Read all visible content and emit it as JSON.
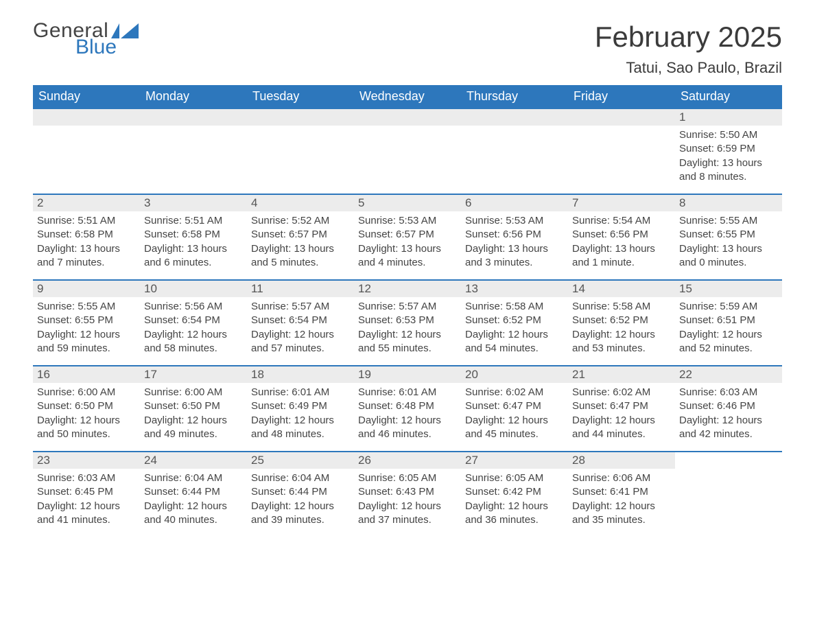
{
  "logo": {
    "text1": "General",
    "text2": "Blue",
    "flag_color": "#2d77bc"
  },
  "title": "February 2025",
  "location": "Tatui, Sao Paulo, Brazil",
  "colors": {
    "header_bg": "#2d77bc",
    "header_text": "#ffffff",
    "daynum_bg": "#ececec",
    "week_divider": "#2d77bc",
    "body_text": "#444444",
    "page_bg": "#ffffff"
  },
  "weekdays": [
    "Sunday",
    "Monday",
    "Tuesday",
    "Wednesday",
    "Thursday",
    "Friday",
    "Saturday"
  ],
  "weeks": [
    [
      {
        "blank": true
      },
      {
        "blank": true
      },
      {
        "blank": true
      },
      {
        "blank": true
      },
      {
        "blank": true
      },
      {
        "blank": true
      },
      {
        "day": "1",
        "sunrise": "Sunrise: 5:50 AM",
        "sunset": "Sunset: 6:59 PM",
        "daylight1": "Daylight: 13 hours",
        "daylight2": "and 8 minutes."
      }
    ],
    [
      {
        "day": "2",
        "sunrise": "Sunrise: 5:51 AM",
        "sunset": "Sunset: 6:58 PM",
        "daylight1": "Daylight: 13 hours",
        "daylight2": "and 7 minutes."
      },
      {
        "day": "3",
        "sunrise": "Sunrise: 5:51 AM",
        "sunset": "Sunset: 6:58 PM",
        "daylight1": "Daylight: 13 hours",
        "daylight2": "and 6 minutes."
      },
      {
        "day": "4",
        "sunrise": "Sunrise: 5:52 AM",
        "sunset": "Sunset: 6:57 PM",
        "daylight1": "Daylight: 13 hours",
        "daylight2": "and 5 minutes."
      },
      {
        "day": "5",
        "sunrise": "Sunrise: 5:53 AM",
        "sunset": "Sunset: 6:57 PM",
        "daylight1": "Daylight: 13 hours",
        "daylight2": "and 4 minutes."
      },
      {
        "day": "6",
        "sunrise": "Sunrise: 5:53 AM",
        "sunset": "Sunset: 6:56 PM",
        "daylight1": "Daylight: 13 hours",
        "daylight2": "and 3 minutes."
      },
      {
        "day": "7",
        "sunrise": "Sunrise: 5:54 AM",
        "sunset": "Sunset: 6:56 PM",
        "daylight1": "Daylight: 13 hours",
        "daylight2": "and 1 minute."
      },
      {
        "day": "8",
        "sunrise": "Sunrise: 5:55 AM",
        "sunset": "Sunset: 6:55 PM",
        "daylight1": "Daylight: 13 hours",
        "daylight2": "and 0 minutes."
      }
    ],
    [
      {
        "day": "9",
        "sunrise": "Sunrise: 5:55 AM",
        "sunset": "Sunset: 6:55 PM",
        "daylight1": "Daylight: 12 hours",
        "daylight2": "and 59 minutes."
      },
      {
        "day": "10",
        "sunrise": "Sunrise: 5:56 AM",
        "sunset": "Sunset: 6:54 PM",
        "daylight1": "Daylight: 12 hours",
        "daylight2": "and 58 minutes."
      },
      {
        "day": "11",
        "sunrise": "Sunrise: 5:57 AM",
        "sunset": "Sunset: 6:54 PM",
        "daylight1": "Daylight: 12 hours",
        "daylight2": "and 57 minutes."
      },
      {
        "day": "12",
        "sunrise": "Sunrise: 5:57 AM",
        "sunset": "Sunset: 6:53 PM",
        "daylight1": "Daylight: 12 hours",
        "daylight2": "and 55 minutes."
      },
      {
        "day": "13",
        "sunrise": "Sunrise: 5:58 AM",
        "sunset": "Sunset: 6:52 PM",
        "daylight1": "Daylight: 12 hours",
        "daylight2": "and 54 minutes."
      },
      {
        "day": "14",
        "sunrise": "Sunrise: 5:58 AM",
        "sunset": "Sunset: 6:52 PM",
        "daylight1": "Daylight: 12 hours",
        "daylight2": "and 53 minutes."
      },
      {
        "day": "15",
        "sunrise": "Sunrise: 5:59 AM",
        "sunset": "Sunset: 6:51 PM",
        "daylight1": "Daylight: 12 hours",
        "daylight2": "and 52 minutes."
      }
    ],
    [
      {
        "day": "16",
        "sunrise": "Sunrise: 6:00 AM",
        "sunset": "Sunset: 6:50 PM",
        "daylight1": "Daylight: 12 hours",
        "daylight2": "and 50 minutes."
      },
      {
        "day": "17",
        "sunrise": "Sunrise: 6:00 AM",
        "sunset": "Sunset: 6:50 PM",
        "daylight1": "Daylight: 12 hours",
        "daylight2": "and 49 minutes."
      },
      {
        "day": "18",
        "sunrise": "Sunrise: 6:01 AM",
        "sunset": "Sunset: 6:49 PM",
        "daylight1": "Daylight: 12 hours",
        "daylight2": "and 48 minutes."
      },
      {
        "day": "19",
        "sunrise": "Sunrise: 6:01 AM",
        "sunset": "Sunset: 6:48 PM",
        "daylight1": "Daylight: 12 hours",
        "daylight2": "and 46 minutes."
      },
      {
        "day": "20",
        "sunrise": "Sunrise: 6:02 AM",
        "sunset": "Sunset: 6:47 PM",
        "daylight1": "Daylight: 12 hours",
        "daylight2": "and 45 minutes."
      },
      {
        "day": "21",
        "sunrise": "Sunrise: 6:02 AM",
        "sunset": "Sunset: 6:47 PM",
        "daylight1": "Daylight: 12 hours",
        "daylight2": "and 44 minutes."
      },
      {
        "day": "22",
        "sunrise": "Sunrise: 6:03 AM",
        "sunset": "Sunset: 6:46 PM",
        "daylight1": "Daylight: 12 hours",
        "daylight2": "and 42 minutes."
      }
    ],
    [
      {
        "day": "23",
        "sunrise": "Sunrise: 6:03 AM",
        "sunset": "Sunset: 6:45 PM",
        "daylight1": "Daylight: 12 hours",
        "daylight2": "and 41 minutes."
      },
      {
        "day": "24",
        "sunrise": "Sunrise: 6:04 AM",
        "sunset": "Sunset: 6:44 PM",
        "daylight1": "Daylight: 12 hours",
        "daylight2": "and 40 minutes."
      },
      {
        "day": "25",
        "sunrise": "Sunrise: 6:04 AM",
        "sunset": "Sunset: 6:44 PM",
        "daylight1": "Daylight: 12 hours",
        "daylight2": "and 39 minutes."
      },
      {
        "day": "26",
        "sunrise": "Sunrise: 6:05 AM",
        "sunset": "Sunset: 6:43 PM",
        "daylight1": "Daylight: 12 hours",
        "daylight2": "and 37 minutes."
      },
      {
        "day": "27",
        "sunrise": "Sunrise: 6:05 AM",
        "sunset": "Sunset: 6:42 PM",
        "daylight1": "Daylight: 12 hours",
        "daylight2": "and 36 minutes."
      },
      {
        "day": "28",
        "sunrise": "Sunrise: 6:06 AM",
        "sunset": "Sunset: 6:41 PM",
        "daylight1": "Daylight: 12 hours",
        "daylight2": "and 35 minutes."
      },
      {
        "blank": true,
        "no_bar": true
      }
    ]
  ]
}
